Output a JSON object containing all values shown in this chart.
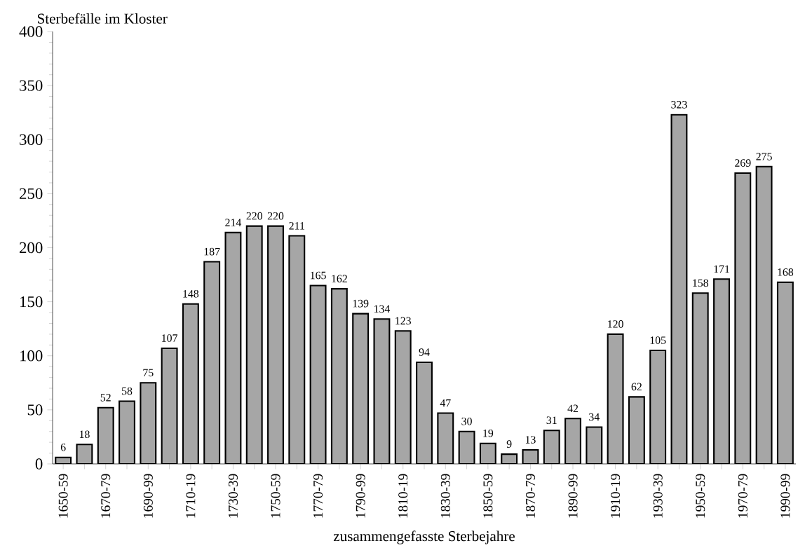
{
  "chart_data": {
    "type": "bar",
    "ylabel": "Sterbefälle im Kloster",
    "xlabel": "zusammengefasste Sterbejahre",
    "categories": [
      "1650-59",
      null,
      "1670-79",
      null,
      "1690-99",
      null,
      "1710-19",
      null,
      "1730-39",
      null,
      "1750-59",
      null,
      "1770-79",
      null,
      "1790-99",
      null,
      "1810-19",
      null,
      "1830-39",
      null,
      "1850-59",
      null,
      "1870-79",
      null,
      "1890-99",
      null,
      "1910-19",
      null,
      "1930-39",
      null,
      "1950-59",
      null,
      "1970-79",
      null,
      "1990-99"
    ],
    "values": [
      6,
      18,
      52,
      58,
      75,
      107,
      148,
      187,
      214,
      220,
      220,
      211,
      165,
      162,
      139,
      134,
      123,
      94,
      47,
      30,
      19,
      9,
      13,
      31,
      42,
      34,
      120,
      62,
      105,
      323,
      158,
      171,
      269,
      275,
      168
    ],
    "color": "#a6a6a6",
    "ylim": [
      0,
      400
    ],
    "yticks": [
      0,
      50,
      100,
      150,
      200,
      250,
      300,
      350,
      400
    ],
    "data_labels": true
  }
}
